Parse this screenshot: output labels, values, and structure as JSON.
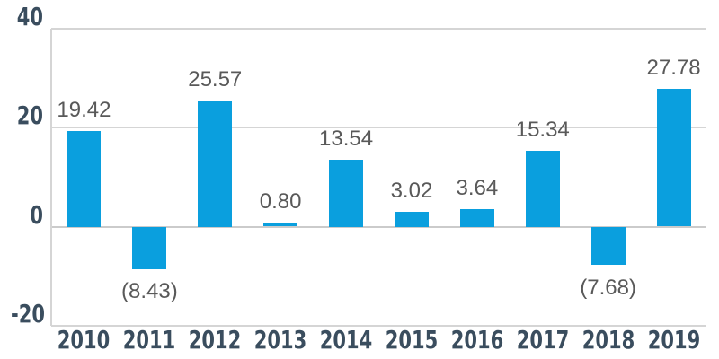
{
  "chart_data": {
    "type": "bar",
    "title": "",
    "xlabel": "",
    "ylabel": "",
    "categories": [
      "2010",
      "2011",
      "2012",
      "2013",
      "2014",
      "2015",
      "2016",
      "2017",
      "2018",
      "2019"
    ],
    "values": [
      19.42,
      -8.43,
      25.57,
      0.8,
      13.54,
      3.02,
      3.64,
      15.34,
      -7.68,
      27.78
    ],
    "data_labels": [
      "19.42",
      "(8.43)",
      "25.57",
      "0.80",
      "13.54",
      "3.02",
      "3.64",
      "15.34",
      "(7.68)",
      "27.78"
    ],
    "negative_label_style": "parentheses",
    "ylim": [
      -20,
      40
    ],
    "yticks": [
      {
        "value": 40,
        "label": "40"
      },
      {
        "value": 20,
        "label": "20"
      },
      {
        "value": 0,
        "label": "0"
      },
      {
        "value": -20,
        "label": "-20"
      }
    ],
    "grid": true,
    "legend": false,
    "colors": {
      "bar": "#0A9FDE",
      "axis_tick_label": "#3A4D5E",
      "data_label": "#595959",
      "gridline": "#D5D5D5",
      "zero_line": "#CBCBCB",
      "background": "#FFFFFF"
    }
  }
}
